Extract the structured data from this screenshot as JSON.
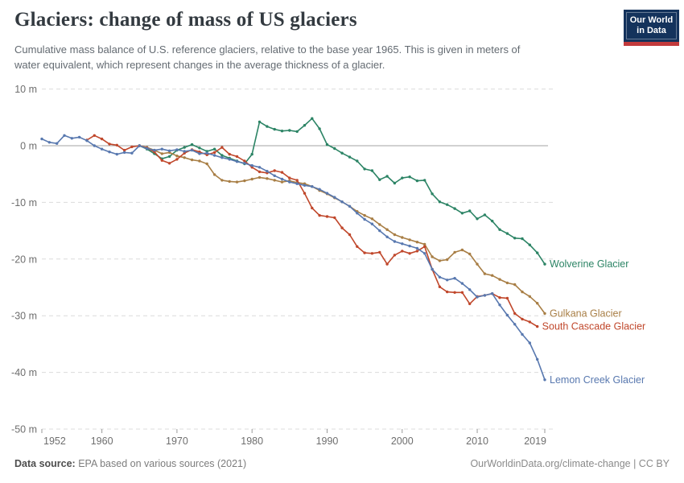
{
  "header": {
    "title": "Glaciers: change of mass of US glaciers",
    "subtitle_line1": "Cumulative mass balance of U.S. reference glaciers, relative to the base year 1965. This is given in meters of",
    "subtitle_line2": "water equivalent, which represent changes in the average thickness of a glacier."
  },
  "logo": {
    "line1": "Our World",
    "line2": "in Data",
    "bg_color": "#14335c",
    "stripe_color": "#c23a3c"
  },
  "footer": {
    "datasource_label": "Data source:",
    "datasource_text": "EPA based on various sources (2021)",
    "credit": "OurWorldinData.org/climate-change | CC BY"
  },
  "chart_data": {
    "type": "line",
    "title": "Glaciers: change of mass of US glaciers",
    "xlabel": "",
    "ylabel": "meters of water equivalent",
    "xlim": [
      1952,
      2019
    ],
    "ylim": [
      -50,
      10
    ],
    "x_ticks": [
      1952,
      1960,
      1970,
      1980,
      1990,
      2000,
      2010,
      2019
    ],
    "y_ticks": [
      10,
      0,
      -10,
      -20,
      -30,
      -40,
      -50
    ],
    "y_tick_suffix": " m",
    "grid": "horizontal-dashed",
    "zero_line": true,
    "legend_position": "end-of-line-labels",
    "colors": {
      "grid": "#dcdcdc",
      "zero_line": "#a3a3a3",
      "axis_text": "#6e6e6e"
    },
    "series": [
      {
        "name": "Wolverine Glacier",
        "color": "#2c8465",
        "points": [
          [
            1965,
            0
          ],
          [
            1966,
            -0.6
          ],
          [
            1967,
            -1.4
          ],
          [
            1968,
            -2.3
          ],
          [
            1969,
            -1.9
          ],
          [
            1970,
            -0.8
          ],
          [
            1971,
            -0.3
          ],
          [
            1972,
            0.2
          ],
          [
            1973,
            -0.4
          ],
          [
            1974,
            -1.0
          ],
          [
            1975,
            -0.6
          ],
          [
            1976,
            -1.7
          ],
          [
            1977,
            -2.2
          ],
          [
            1978,
            -2.7
          ],
          [
            1979,
            -3.2
          ],
          [
            1980,
            -1.5
          ],
          [
            1981,
            4.2
          ],
          [
            1982,
            3.4
          ],
          [
            1983,
            2.9
          ],
          [
            1984,
            2.6
          ],
          [
            1985,
            2.7
          ],
          [
            1986,
            2.5
          ],
          [
            1987,
            3.6
          ],
          [
            1988,
            4.8
          ],
          [
            1989,
            3.0
          ],
          [
            1990,
            0.2
          ],
          [
            1991,
            -0.5
          ],
          [
            1992,
            -1.3
          ],
          [
            1993,
            -2.0
          ],
          [
            1994,
            -2.7
          ],
          [
            1995,
            -4.1
          ],
          [
            1996,
            -4.4
          ],
          [
            1997,
            -6.0
          ],
          [
            1998,
            -5.4
          ],
          [
            1999,
            -6.6
          ],
          [
            2000,
            -5.7
          ],
          [
            2001,
            -5.5
          ],
          [
            2002,
            -6.2
          ],
          [
            2003,
            -6.1
          ],
          [
            2004,
            -8.5
          ],
          [
            2005,
            -9.9
          ],
          [
            2006,
            -10.4
          ],
          [
            2007,
            -11.1
          ],
          [
            2008,
            -11.9
          ],
          [
            2009,
            -11.5
          ],
          [
            2010,
            -12.9
          ],
          [
            2011,
            -12.2
          ],
          [
            2012,
            -13.3
          ],
          [
            2013,
            -14.8
          ],
          [
            2014,
            -15.5
          ],
          [
            2015,
            -16.3
          ],
          [
            2016,
            -16.4
          ],
          [
            2017,
            -17.5
          ],
          [
            2018,
            -18.9
          ],
          [
            2019,
            -20.9
          ]
        ]
      },
      {
        "name": "Gulkana Glacier",
        "color": "#a87e45",
        "points": [
          [
            1965,
            0
          ],
          [
            1966,
            -0.3
          ],
          [
            1967,
            -0.8
          ],
          [
            1968,
            -1.4
          ],
          [
            1969,
            -1.2
          ],
          [
            1970,
            -1.8
          ],
          [
            1971,
            -2.1
          ],
          [
            1972,
            -2.5
          ],
          [
            1973,
            -2.7
          ],
          [
            1974,
            -3.2
          ],
          [
            1975,
            -5.1
          ],
          [
            1976,
            -6.1
          ],
          [
            1977,
            -6.3
          ],
          [
            1978,
            -6.4
          ],
          [
            1979,
            -6.2
          ],
          [
            1980,
            -5.9
          ],
          [
            1981,
            -5.6
          ],
          [
            1982,
            -5.8
          ],
          [
            1983,
            -6.1
          ],
          [
            1984,
            -6.4
          ],
          [
            1985,
            -6.2
          ],
          [
            1986,
            -6.5
          ],
          [
            1987,
            -6.7
          ],
          [
            1988,
            -7.2
          ],
          [
            1989,
            -7.9
          ],
          [
            1990,
            -8.5
          ],
          [
            1991,
            -9.2
          ],
          [
            1992,
            -9.9
          ],
          [
            1993,
            -10.7
          ],
          [
            1994,
            -11.6
          ],
          [
            1995,
            -12.3
          ],
          [
            1996,
            -12.9
          ],
          [
            1997,
            -13.9
          ],
          [
            1998,
            -14.8
          ],
          [
            1999,
            -15.7
          ],
          [
            2000,
            -16.2
          ],
          [
            2001,
            -16.6
          ],
          [
            2002,
            -17.0
          ],
          [
            2003,
            -17.4
          ],
          [
            2004,
            -19.6
          ],
          [
            2005,
            -20.3
          ],
          [
            2006,
            -20.1
          ],
          [
            2007,
            -18.8
          ],
          [
            2008,
            -18.4
          ],
          [
            2009,
            -19.1
          ],
          [
            2010,
            -20.9
          ],
          [
            2011,
            -22.6
          ],
          [
            2012,
            -22.9
          ],
          [
            2013,
            -23.6
          ],
          [
            2014,
            -24.2
          ],
          [
            2015,
            -24.5
          ],
          [
            2016,
            -25.8
          ],
          [
            2017,
            -26.6
          ],
          [
            2018,
            -27.8
          ],
          [
            2019,
            -29.6
          ]
        ]
      },
      {
        "name": "South Cascade Glacier",
        "color": "#c0472b",
        "points": [
          [
            1958,
            1.0
          ],
          [
            1959,
            1.8
          ],
          [
            1960,
            1.2
          ],
          [
            1961,
            0.3
          ],
          [
            1962,
            0.1
          ],
          [
            1963,
            -0.8
          ],
          [
            1964,
            -0.2
          ],
          [
            1965,
            0
          ],
          [
            1966,
            -0.4
          ],
          [
            1967,
            -1.1
          ],
          [
            1968,
            -2.6
          ],
          [
            1969,
            -3.1
          ],
          [
            1970,
            -2.4
          ],
          [
            1971,
            -1.3
          ],
          [
            1972,
            -0.7
          ],
          [
            1973,
            -1.1
          ],
          [
            1974,
            -1.6
          ],
          [
            1975,
            -1.2
          ],
          [
            1976,
            -0.3
          ],
          [
            1977,
            -1.5
          ],
          [
            1978,
            -1.9
          ],
          [
            1979,
            -2.7
          ],
          [
            1980,
            -3.8
          ],
          [
            1981,
            -4.6
          ],
          [
            1982,
            -4.8
          ],
          [
            1983,
            -4.4
          ],
          [
            1984,
            -4.7
          ],
          [
            1985,
            -5.7
          ],
          [
            1986,
            -6.1
          ],
          [
            1987,
            -8.4
          ],
          [
            1988,
            -11.0
          ],
          [
            1989,
            -12.3
          ],
          [
            1990,
            -12.5
          ],
          [
            1991,
            -12.7
          ],
          [
            1992,
            -14.5
          ],
          [
            1993,
            -15.7
          ],
          [
            1994,
            -17.8
          ],
          [
            1995,
            -18.9
          ],
          [
            1996,
            -19.0
          ],
          [
            1997,
            -18.8
          ],
          [
            1998,
            -20.9
          ],
          [
            1999,
            -19.3
          ],
          [
            2000,
            -18.6
          ],
          [
            2001,
            -19.0
          ],
          [
            2002,
            -18.6
          ],
          [
            2003,
            -17.8
          ],
          [
            2004,
            -21.8
          ],
          [
            2005,
            -24.9
          ],
          [
            2006,
            -25.8
          ],
          [
            2007,
            -25.9
          ],
          [
            2008,
            -25.9
          ],
          [
            2009,
            -27.9
          ],
          [
            2010,
            -26.6
          ],
          [
            2011,
            -26.4
          ],
          [
            2012,
            -26.1
          ],
          [
            2013,
            -26.8
          ],
          [
            2014,
            -26.9
          ],
          [
            2015,
            -29.6
          ],
          [
            2016,
            -30.6
          ],
          [
            2017,
            -31.1
          ],
          [
            2018,
            -31.9
          ]
        ]
      },
      {
        "name": "Lemon Creek Glacier",
        "color": "#5878af",
        "points": [
          [
            1952,
            1.2
          ],
          [
            1953,
            0.6
          ],
          [
            1954,
            0.4
          ],
          [
            1955,
            1.8
          ],
          [
            1956,
            1.3
          ],
          [
            1957,
            1.5
          ],
          [
            1958,
            0.9
          ],
          [
            1959,
            0.0
          ],
          [
            1960,
            -0.6
          ],
          [
            1961,
            -1.1
          ],
          [
            1962,
            -1.5
          ],
          [
            1963,
            -1.2
          ],
          [
            1964,
            -1.3
          ],
          [
            1965,
            0
          ],
          [
            1966,
            -0.5
          ],
          [
            1967,
            -0.8
          ],
          [
            1968,
            -0.6
          ],
          [
            1969,
            -0.9
          ],
          [
            1970,
            -0.7
          ],
          [
            1971,
            -1.0
          ],
          [
            1972,
            -0.8
          ],
          [
            1973,
            -1.4
          ],
          [
            1974,
            -1.3
          ],
          [
            1975,
            -1.7
          ],
          [
            1976,
            -2.1
          ],
          [
            1977,
            -2.4
          ],
          [
            1978,
            -2.8
          ],
          [
            1979,
            -3.1
          ],
          [
            1980,
            -3.5
          ],
          [
            1981,
            -3.8
          ],
          [
            1982,
            -4.5
          ],
          [
            1983,
            -5.3
          ],
          [
            1984,
            -5.9
          ],
          [
            1985,
            -6.4
          ],
          [
            1986,
            -6.7
          ],
          [
            1987,
            -7.0
          ],
          [
            1988,
            -7.2
          ],
          [
            1989,
            -7.7
          ],
          [
            1990,
            -8.4
          ],
          [
            1991,
            -9.1
          ],
          [
            1992,
            -9.9
          ],
          [
            1993,
            -10.7
          ],
          [
            1994,
            -11.9
          ],
          [
            1995,
            -13.0
          ],
          [
            1996,
            -13.8
          ],
          [
            1997,
            -15.0
          ],
          [
            1998,
            -16.1
          ],
          [
            1999,
            -16.9
          ],
          [
            2000,
            -17.3
          ],
          [
            2001,
            -17.7
          ],
          [
            2002,
            -18.1
          ],
          [
            2003,
            -19.0
          ],
          [
            2004,
            -21.8
          ],
          [
            2005,
            -23.2
          ],
          [
            2006,
            -23.7
          ],
          [
            2007,
            -23.4
          ],
          [
            2008,
            -24.3
          ],
          [
            2009,
            -25.4
          ],
          [
            2010,
            -26.7
          ],
          [
            2011,
            -26.4
          ],
          [
            2012,
            -26.1
          ],
          [
            2013,
            -28.1
          ],
          [
            2014,
            -29.9
          ],
          [
            2015,
            -31.5
          ],
          [
            2016,
            -33.3
          ],
          [
            2017,
            -34.8
          ],
          [
            2018,
            -37.7
          ],
          [
            2019,
            -41.3
          ]
        ]
      }
    ]
  }
}
